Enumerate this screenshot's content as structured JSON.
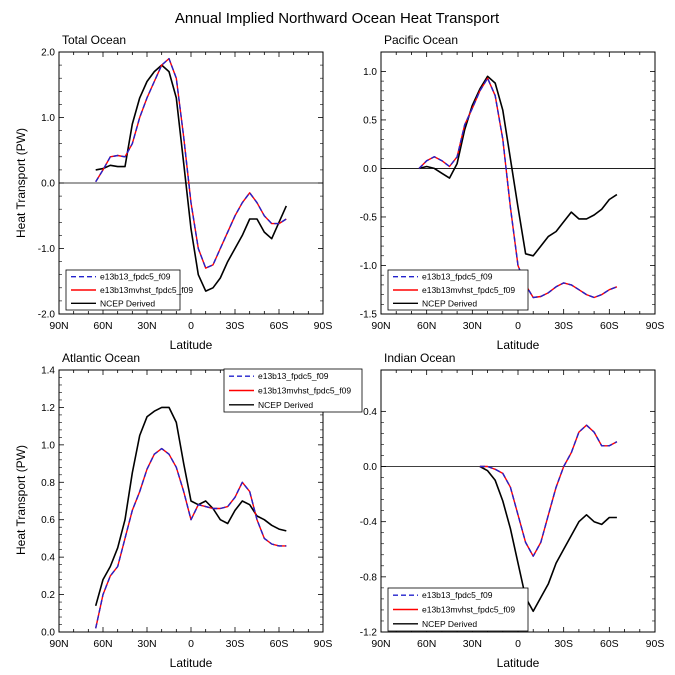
{
  "title": "Annual Implied Northward Ocean Heat Transport",
  "colors": {
    "model1": "#2222cc",
    "model2": "#ff0000",
    "obs": "#000000",
    "frame": "#000000"
  },
  "legend_labels": [
    "e13b13_fpdc5_f09",
    "e13b13mvhst_fpdc5_f09",
    "NCEP Derived"
  ],
  "ylabel": "Heat Transport (PW)",
  "chart_data": [
    {
      "type": "line",
      "title": "Total Ocean",
      "xlabel": "Latitude",
      "ylabel": "Heat Transport (PW)",
      "xlim": [
        90,
        -90
      ],
      "ylim": [
        -2.0,
        2.0
      ],
      "x_ticks": [
        90,
        60,
        30,
        0,
        -30,
        -60,
        -90
      ],
      "x_tick_labels": [
        "90N",
        "60N",
        "30N",
        "0",
        "30S",
        "60S",
        "90S"
      ],
      "y_ticks": [
        -2.0,
        -1.0,
        0.0,
        1.0,
        2.0
      ],
      "y_tick_labels": [
        "-2.0",
        "-1.0",
        "0.0",
        "1.0",
        "2.0"
      ],
      "legend": "bottom-left",
      "series": [
        {
          "name": "e13b13_fpdc5_f09",
          "style": "dashed",
          "x": [
            65,
            60,
            55,
            50,
            45,
            40,
            35,
            30,
            25,
            20,
            15,
            10,
            5,
            0,
            -5,
            -10,
            -15,
            -20,
            -25,
            -30,
            -35,
            -40,
            -45,
            -50,
            -55,
            -60,
            -65
          ],
          "y": [
            0.02,
            0.2,
            0.4,
            0.42,
            0.4,
            0.6,
            1.0,
            1.3,
            1.55,
            1.8,
            1.9,
            1.6,
            0.7,
            -0.3,
            -1.0,
            -1.3,
            -1.25,
            -1.0,
            -0.75,
            -0.5,
            -0.3,
            -0.15,
            -0.3,
            -0.5,
            -0.62,
            -0.62,
            -0.55
          ]
        },
        {
          "name": "e13b13mvhst_fpdc5_f09",
          "style": "solid",
          "x": [
            65,
            60,
            55,
            50,
            45,
            40,
            35,
            30,
            25,
            20,
            15,
            10,
            5,
            0,
            -5,
            -10,
            -15,
            -20,
            -25,
            -30,
            -35,
            -40,
            -45,
            -50,
            -55,
            -60,
            -65
          ],
          "y": [
            0.02,
            0.2,
            0.4,
            0.42,
            0.4,
            0.6,
            1.0,
            1.3,
            1.55,
            1.8,
            1.9,
            1.6,
            0.7,
            -0.3,
            -1.0,
            -1.3,
            -1.25,
            -1.0,
            -0.75,
            -0.5,
            -0.3,
            -0.15,
            -0.3,
            -0.5,
            -0.62,
            -0.62,
            -0.55
          ]
        },
        {
          "name": "NCEP Derived",
          "style": "solid",
          "x": [
            65,
            60,
            55,
            50,
            45,
            40,
            35,
            30,
            25,
            20,
            15,
            10,
            5,
            0,
            -5,
            -10,
            -15,
            -20,
            -25,
            -30,
            -35,
            -40,
            -45,
            -50,
            -55,
            -60,
            -65
          ],
          "y": [
            0.2,
            0.22,
            0.27,
            0.25,
            0.25,
            0.9,
            1.3,
            1.55,
            1.7,
            1.8,
            1.7,
            1.3,
            0.3,
            -0.7,
            -1.4,
            -1.65,
            -1.6,
            -1.45,
            -1.2,
            -1.0,
            -0.8,
            -0.55,
            -0.55,
            -0.75,
            -0.85,
            -0.6,
            -0.35
          ]
        }
      ]
    },
    {
      "type": "line",
      "title": "Pacific Ocean",
      "xlabel": "Latitude",
      "ylabel": "",
      "xlim": [
        90,
        -90
      ],
      "ylim": [
        -1.5,
        1.2
      ],
      "x_ticks": [
        90,
        60,
        30,
        0,
        -30,
        -60,
        -90
      ],
      "x_tick_labels": [
        "90N",
        "60N",
        "30N",
        "0",
        "30S",
        "60S",
        "90S"
      ],
      "y_ticks": [
        -1.5,
        -1.0,
        -0.5,
        0.0,
        0.5,
        1.0
      ],
      "y_tick_labels": [
        "-1.5",
        "-1.0",
        "-0.5",
        "0.0",
        "0.5",
        "1.0"
      ],
      "legend": "bottom-left",
      "series": [
        {
          "name": "e13b13_fpdc5_f09",
          "style": "dashed",
          "x": [
            65,
            60,
            55,
            50,
            45,
            40,
            35,
            30,
            25,
            20,
            15,
            10,
            5,
            0,
            -5,
            -10,
            -15,
            -20,
            -25,
            -30,
            -35,
            -40,
            -45,
            -50,
            -55,
            -60,
            -65
          ],
          "y": [
            0.0,
            0.08,
            0.12,
            0.08,
            0.02,
            0.12,
            0.45,
            0.62,
            0.8,
            0.93,
            0.75,
            0.3,
            -0.4,
            -1.0,
            -1.2,
            -1.33,
            -1.32,
            -1.28,
            -1.22,
            -1.18,
            -1.2,
            -1.25,
            -1.3,
            -1.33,
            -1.3,
            -1.25,
            -1.22
          ]
        },
        {
          "name": "e13b13mvhst_fpdc5_f09",
          "style": "solid",
          "x": [
            65,
            60,
            55,
            50,
            45,
            40,
            35,
            30,
            25,
            20,
            15,
            10,
            5,
            0,
            -5,
            -10,
            -15,
            -20,
            -25,
            -30,
            -35,
            -40,
            -45,
            -50,
            -55,
            -60,
            -65
          ],
          "y": [
            0.0,
            0.08,
            0.12,
            0.08,
            0.02,
            0.12,
            0.45,
            0.62,
            0.8,
            0.93,
            0.75,
            0.3,
            -0.4,
            -1.0,
            -1.2,
            -1.33,
            -1.32,
            -1.28,
            -1.22,
            -1.18,
            -1.2,
            -1.25,
            -1.3,
            -1.33,
            -1.3,
            -1.25,
            -1.22
          ]
        },
        {
          "name": "NCEP Derived",
          "style": "solid",
          "x": [
            65,
            60,
            55,
            50,
            45,
            40,
            35,
            30,
            25,
            20,
            15,
            10,
            5,
            0,
            -5,
            -10,
            -15,
            -20,
            -25,
            -30,
            -35,
            -40,
            -45,
            -50,
            -55,
            -60,
            -65
          ],
          "y": [
            0.0,
            0.02,
            0.0,
            -0.05,
            -0.1,
            0.05,
            0.4,
            0.65,
            0.82,
            0.95,
            0.88,
            0.6,
            0.1,
            -0.4,
            -0.88,
            -0.9,
            -0.8,
            -0.7,
            -0.65,
            -0.55,
            -0.45,
            -0.52,
            -0.52,
            -0.48,
            -0.42,
            -0.32,
            -0.27
          ]
        }
      ]
    },
    {
      "type": "line",
      "title": "Atlantic Ocean",
      "xlabel": "Latitude",
      "ylabel": "Heat Transport (PW)",
      "xlim": [
        90,
        -90
      ],
      "ylim": [
        0.0,
        1.4
      ],
      "x_ticks": [
        90,
        60,
        30,
        0,
        -30,
        -60,
        -90
      ],
      "x_tick_labels": [
        "90N",
        "60N",
        "30N",
        "0",
        "30S",
        "60S",
        "90S"
      ],
      "y_ticks": [
        0.0,
        0.2,
        0.4,
        0.6,
        0.8,
        1.0,
        1.2,
        1.4
      ],
      "y_tick_labels": [
        "0.0",
        "0.2",
        "0.4",
        "0.6",
        "0.8",
        "1.0",
        "1.2",
        "1.4"
      ],
      "legend": "top-right",
      "series": [
        {
          "name": "e13b13_fpdc5_f09",
          "style": "dashed",
          "x": [
            65,
            60,
            55,
            50,
            45,
            40,
            35,
            30,
            25,
            20,
            15,
            10,
            5,
            0,
            -5,
            -10,
            -15,
            -20,
            -25,
            -30,
            -35,
            -40,
            -45,
            -50,
            -55,
            -60,
            -65
          ],
          "y": [
            0.02,
            0.2,
            0.3,
            0.35,
            0.5,
            0.65,
            0.75,
            0.87,
            0.95,
            0.98,
            0.95,
            0.88,
            0.75,
            0.6,
            0.68,
            0.67,
            0.66,
            0.66,
            0.67,
            0.72,
            0.8,
            0.75,
            0.6,
            0.5,
            0.47,
            0.46,
            0.46
          ]
        },
        {
          "name": "e13b13mvhst_fpdc5_f09",
          "style": "solid",
          "x": [
            65,
            60,
            55,
            50,
            45,
            40,
            35,
            30,
            25,
            20,
            15,
            10,
            5,
            0,
            -5,
            -10,
            -15,
            -20,
            -25,
            -30,
            -35,
            -40,
            -45,
            -50,
            -55,
            -60,
            -65
          ],
          "y": [
            0.02,
            0.2,
            0.3,
            0.35,
            0.5,
            0.65,
            0.75,
            0.87,
            0.95,
            0.98,
            0.95,
            0.88,
            0.75,
            0.6,
            0.68,
            0.67,
            0.66,
            0.66,
            0.67,
            0.72,
            0.8,
            0.75,
            0.6,
            0.5,
            0.47,
            0.46,
            0.46
          ]
        },
        {
          "name": "NCEP Derived",
          "style": "solid",
          "x": [
            65,
            60,
            55,
            50,
            45,
            40,
            35,
            30,
            25,
            20,
            15,
            10,
            5,
            0,
            -5,
            -10,
            -15,
            -20,
            -25,
            -30,
            -35,
            -40,
            -45,
            -50,
            -55,
            -60,
            -65
          ],
          "y": [
            0.14,
            0.28,
            0.35,
            0.45,
            0.6,
            0.85,
            1.05,
            1.15,
            1.18,
            1.2,
            1.2,
            1.12,
            0.9,
            0.7,
            0.68,
            0.7,
            0.66,
            0.6,
            0.58,
            0.65,
            0.7,
            0.68,
            0.62,
            0.6,
            0.57,
            0.55,
            0.54
          ]
        }
      ]
    },
    {
      "type": "line",
      "title": "Indian Ocean",
      "xlabel": "Latitude",
      "ylabel": "",
      "xlim": [
        90,
        -90
      ],
      "ylim": [
        -1.2,
        0.7
      ],
      "x_ticks": [
        90,
        60,
        30,
        0,
        -30,
        -60,
        -90
      ],
      "x_tick_labels": [
        "90N",
        "60N",
        "30N",
        "0",
        "30S",
        "60S",
        "90S"
      ],
      "y_ticks": [
        -1.2,
        -0.8,
        -0.4,
        0.0,
        0.4
      ],
      "y_tick_labels": [
        "-1.2",
        "-0.8",
        "-0.4",
        "0.0",
        "0.4"
      ],
      "legend": "bottom-left",
      "series": [
        {
          "name": "e13b13_fpdc5_f09",
          "style": "dashed",
          "x": [
            25,
            20,
            15,
            10,
            5,
            0,
            -5,
            -10,
            -15,
            -20,
            -25,
            -30,
            -35,
            -40,
            -45,
            -50,
            -55,
            -60,
            -65
          ],
          "y": [
            0.0,
            0.0,
            -0.02,
            -0.05,
            -0.15,
            -0.35,
            -0.55,
            -0.65,
            -0.55,
            -0.35,
            -0.15,
            0.0,
            0.1,
            0.25,
            0.3,
            0.25,
            0.15,
            0.15,
            0.18
          ]
        },
        {
          "name": "e13b13mvhst_fpdc5_f09",
          "style": "solid",
          "x": [
            25,
            20,
            15,
            10,
            5,
            0,
            -5,
            -10,
            -15,
            -20,
            -25,
            -30,
            -35,
            -40,
            -45,
            -50,
            -55,
            -60,
            -65
          ],
          "y": [
            0.0,
            0.0,
            -0.02,
            -0.05,
            -0.15,
            -0.35,
            -0.55,
            -0.65,
            -0.55,
            -0.35,
            -0.15,
            0.0,
            0.1,
            0.25,
            0.3,
            0.25,
            0.15,
            0.15,
            0.18
          ]
        },
        {
          "name": "NCEP Derived",
          "style": "solid",
          "x": [
            25,
            20,
            15,
            10,
            5,
            0,
            -5,
            -10,
            -15,
            -20,
            -25,
            -30,
            -35,
            -40,
            -45,
            -50,
            -55,
            -60,
            -65
          ],
          "y": [
            0.0,
            -0.03,
            -0.1,
            -0.25,
            -0.45,
            -0.7,
            -0.95,
            -1.05,
            -0.95,
            -0.85,
            -0.7,
            -0.6,
            -0.5,
            -0.4,
            -0.35,
            -0.4,
            -0.42,
            -0.37,
            -0.37
          ]
        }
      ]
    }
  ]
}
